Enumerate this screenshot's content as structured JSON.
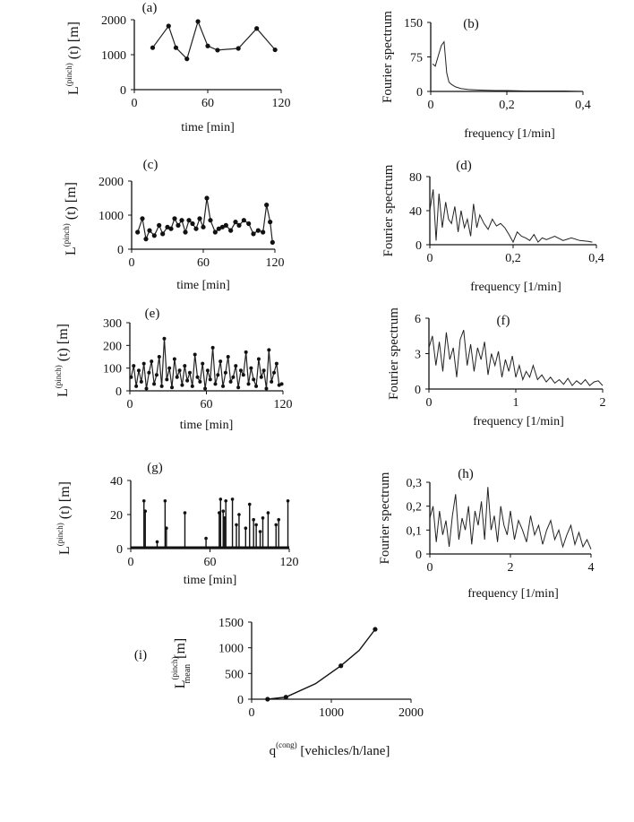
{
  "chart_data": [
    {
      "id": "a",
      "type": "line",
      "panel_label": "(a)",
      "xlabel": "time [min]",
      "ylabel": "L(t) [m]",
      "ylabel_sup": "(pinch)",
      "xlim": [
        0,
        120
      ],
      "ylim": [
        0,
        2000
      ],
      "xticks": [
        "0",
        "60",
        "120"
      ],
      "yticks": [
        "0",
        "1000",
        "2000"
      ],
      "x": [
        15,
        28,
        34,
        43,
        52,
        60,
        68,
        85,
        100,
        115
      ],
      "y": [
        1200,
        1820,
        1200,
        880,
        1950,
        1250,
        1130,
        1180,
        1750,
        1140
      ]
    },
    {
      "id": "b",
      "type": "line",
      "panel_label": "(b)",
      "xlabel": "frequency [1/min]",
      "ylabel": "Fourier spectrum",
      "xlim": [
        0,
        0.4
      ],
      "ylim": [
        0,
        150
      ],
      "xticks": [
        "0",
        "0,2",
        "0,4"
      ],
      "yticks": [
        "0",
        "75",
        "150"
      ],
      "x": [
        0.005,
        0.012,
        0.02,
        0.028,
        0.035,
        0.042,
        0.048,
        0.055,
        0.065,
        0.08,
        0.1,
        0.13,
        0.17,
        0.2,
        0.25,
        0.3,
        0.35,
        0.4
      ],
      "y": [
        60,
        55,
        78,
        100,
        108,
        40,
        20,
        15,
        10,
        6,
        4,
        3,
        2,
        2,
        1,
        1,
        1,
        0
      ]
    },
    {
      "id": "c",
      "type": "line",
      "panel_label": "(c)",
      "xlabel": "time [min]",
      "ylabel": "L(t) [m]",
      "ylabel_sup": "(pinch)",
      "xlim": [
        0,
        120
      ],
      "ylim": [
        0,
        2000
      ],
      "xticks": [
        "0",
        "60",
        "120"
      ],
      "yticks": [
        "0",
        "1000",
        "2000"
      ],
      "x": [
        5,
        9,
        12,
        15,
        19,
        23,
        26,
        30,
        33,
        36,
        39,
        42,
        45,
        48,
        51,
        54,
        57,
        60,
        63,
        66,
        70,
        73,
        76,
        79,
        83,
        87,
        90,
        94,
        98,
        102,
        106,
        110,
        113,
        116,
        118
      ],
      "y": [
        500,
        900,
        300,
        550,
        400,
        700,
        450,
        650,
        600,
        900,
        700,
        850,
        500,
        850,
        750,
        600,
        900,
        650,
        1500,
        850,
        500,
        600,
        650,
        700,
        550,
        800,
        700,
        850,
        750,
        450,
        550,
        500,
        1300,
        800,
        200
      ]
    },
    {
      "id": "d",
      "type": "line",
      "panel_label": "(d)",
      "xlabel": "frequency [1/min]",
      "ylabel": "Fourier spectrum",
      "xlim": [
        0,
        0.4
      ],
      "ylim": [
        0,
        80
      ],
      "xticks": [
        "0",
        "0,2",
        "0,4"
      ],
      "yticks": [
        "0",
        "40",
        "80"
      ],
      "x": [
        0.0,
        0.008,
        0.015,
        0.022,
        0.03,
        0.038,
        0.045,
        0.052,
        0.06,
        0.068,
        0.075,
        0.083,
        0.09,
        0.098,
        0.105,
        0.113,
        0.12,
        0.13,
        0.14,
        0.15,
        0.16,
        0.17,
        0.18,
        0.19,
        0.2,
        0.21,
        0.22,
        0.23,
        0.24,
        0.25,
        0.26,
        0.27,
        0.28,
        0.3,
        0.32,
        0.34,
        0.36,
        0.38,
        0.39
      ],
      "y": [
        40,
        65,
        5,
        60,
        20,
        50,
        30,
        25,
        45,
        15,
        40,
        20,
        30,
        10,
        48,
        20,
        35,
        25,
        18,
        30,
        22,
        25,
        20,
        12,
        3,
        15,
        10,
        8,
        5,
        12,
        3,
        8,
        6,
        10,
        5,
        8,
        5,
        4,
        3
      ]
    },
    {
      "id": "e",
      "type": "line",
      "panel_label": "(e)",
      "xlabel": "time [min]",
      "ylabel": "L(t) [m]",
      "ylabel_sup": "(pinch)",
      "xlim": [
        0,
        120
      ],
      "ylim": [
        0,
        300
      ],
      "xticks": [
        "0",
        "60",
        "120"
      ],
      "yticks": [
        "0",
        "100",
        "200",
        "300"
      ],
      "x": [
        1,
        3,
        5,
        7,
        9,
        11,
        13,
        15,
        17,
        19,
        21,
        23,
        25,
        27,
        29,
        31,
        33,
        35,
        37,
        39,
        41,
        43,
        45,
        47,
        49,
        51,
        53,
        55,
        57,
        59,
        61,
        63,
        65,
        67,
        69,
        71,
        73,
        75,
        77,
        79,
        81,
        83,
        85,
        87,
        89,
        91,
        93,
        95,
        97,
        99,
        101,
        103,
        105,
        107,
        109,
        111,
        113,
        115,
        117,
        119
      ],
      "y": [
        60,
        110,
        20,
        90,
        40,
        120,
        10,
        80,
        130,
        30,
        70,
        150,
        20,
        230,
        50,
        100,
        15,
        140,
        60,
        90,
        25,
        110,
        45,
        80,
        20,
        160,
        60,
        40,
        120,
        10,
        90,
        50,
        190,
        30,
        70,
        130,
        20,
        80,
        150,
        40,
        60,
        110,
        15,
        90,
        70,
        170,
        30,
        100,
        50,
        20,
        140,
        60,
        90,
        10,
        180,
        40,
        80,
        120,
        25,
        30
      ]
    },
    {
      "id": "f",
      "type": "line",
      "panel_label": "(f)",
      "xlabel": "frequency [1/min]",
      "ylabel": "Fourier spectrum",
      "xlim": [
        0,
        2
      ],
      "ylim": [
        0,
        6
      ],
      "xticks": [
        "0",
        "1",
        "2"
      ],
      "yticks": [
        "0",
        "3",
        "6"
      ],
      "x": [
        0.0,
        0.04,
        0.08,
        0.12,
        0.16,
        0.2,
        0.24,
        0.28,
        0.32,
        0.36,
        0.4,
        0.44,
        0.48,
        0.52,
        0.56,
        0.6,
        0.64,
        0.68,
        0.72,
        0.76,
        0.8,
        0.84,
        0.88,
        0.92,
        0.96,
        1.0,
        1.04,
        1.08,
        1.12,
        1.16,
        1.2,
        1.25,
        1.3,
        1.35,
        1.4,
        1.45,
        1.5,
        1.55,
        1.6,
        1.65,
        1.7,
        1.75,
        1.8,
        1.85,
        1.9,
        1.95,
        2.0
      ],
      "y": [
        3.5,
        4.5,
        2.0,
        4.0,
        1.5,
        4.8,
        2.5,
        3.5,
        1.0,
        4.2,
        5.0,
        2.0,
        3.8,
        1.5,
        3.5,
        2.5,
        4.0,
        1.2,
        3.0,
        2.0,
        3.2,
        1.0,
        2.5,
        1.5,
        2.8,
        1.0,
        2.0,
        0.8,
        1.5,
        1.0,
        2.0,
        0.8,
        1.2,
        0.6,
        1.0,
        0.5,
        0.8,
        0.4,
        0.9,
        0.3,
        0.7,
        0.4,
        0.8,
        0.3,
        0.6,
        0.7,
        0.3
      ]
    },
    {
      "id": "g",
      "type": "line",
      "panel_label": "(g)",
      "xlabel": "time [min]",
      "ylabel": "L(t) [m]",
      "ylabel_sup": "(pinch)",
      "xlim": [
        0,
        120
      ],
      "ylim": [
        0,
        40
      ],
      "xticks": [
        "0",
        "60",
        "120"
      ],
      "yticks": [
        "0",
        "20",
        "40"
      ],
      "spike_x": [
        10,
        11,
        20,
        26,
        27,
        41,
        57,
        67,
        68,
        70,
        71,
        72,
        77,
        80,
        82,
        87,
        90,
        93,
        95,
        98,
        100,
        104,
        110,
        112,
        119
      ],
      "spike_y": [
        28,
        22,
        4,
        28,
        12,
        21,
        6,
        21,
        29,
        22,
        18,
        28,
        29,
        14,
        20,
        12,
        26,
        17,
        14,
        10,
        18,
        21,
        14,
        17,
        28
      ]
    },
    {
      "id": "h",
      "type": "line",
      "panel_label": "(h)",
      "xlabel": "frequency [1/min]",
      "ylabel": "Fourier spectrum",
      "xlim": [
        0,
        4
      ],
      "ylim": [
        0,
        0.3
      ],
      "xticks": [
        "0",
        "2",
        "4"
      ],
      "yticks": [
        "0",
        "0,1",
        "0,2",
        "0,3"
      ],
      "x": [
        0.0,
        0.08,
        0.16,
        0.24,
        0.32,
        0.4,
        0.48,
        0.56,
        0.64,
        0.72,
        0.8,
        0.88,
        0.96,
        1.04,
        1.12,
        1.2,
        1.28,
        1.36,
        1.44,
        1.52,
        1.6,
        1.68,
        1.76,
        1.84,
        1.92,
        2.0,
        2.1,
        2.2,
        2.3,
        2.4,
        2.5,
        2.6,
        2.7,
        2.8,
        2.9,
        3.0,
        3.1,
        3.2,
        3.3,
        3.4,
        3.5,
        3.6,
        3.7,
        3.8,
        3.9,
        4.0
      ],
      "y": [
        0.15,
        0.2,
        0.05,
        0.18,
        0.08,
        0.14,
        0.03,
        0.16,
        0.25,
        0.06,
        0.15,
        0.1,
        0.2,
        0.04,
        0.18,
        0.12,
        0.22,
        0.06,
        0.28,
        0.1,
        0.16,
        0.05,
        0.2,
        0.12,
        0.08,
        0.18,
        0.06,
        0.14,
        0.1,
        0.05,
        0.16,
        0.08,
        0.12,
        0.04,
        0.1,
        0.14,
        0.06,
        0.1,
        0.03,
        0.08,
        0.12,
        0.04,
        0.09,
        0.03,
        0.06,
        0.02
      ]
    },
    {
      "id": "i",
      "type": "line",
      "panel_label": "(i)",
      "xlabel": "q [vehicles/h/lane]",
      "xlabel_main": "q",
      "xlabel_sup": "(cong)",
      "xlabel_unit": "[vehicles/h/lane]",
      "ylabel": "L mean [m]",
      "ylabel_main": "L",
      "ylabel_sup": "(pinch)",
      "ylabel_sub": "mean",
      "ylabel_unit": "[m]",
      "xlim": [
        0,
        2000
      ],
      "ylim": [
        0,
        1500
      ],
      "xticks": [
        "0",
        "1000",
        "2000"
      ],
      "yticks": [
        "0",
        "500",
        "1000",
        "1500"
      ],
      "x": [
        200,
        430,
        1120,
        1550
      ],
      "y": [
        0,
        40,
        650,
        1360
      ],
      "curve_x": [
        200,
        430,
        800,
        1120,
        1350,
        1550
      ],
      "curve_y": [
        0,
        40,
        300,
        650,
        950,
        1360
      ]
    }
  ]
}
